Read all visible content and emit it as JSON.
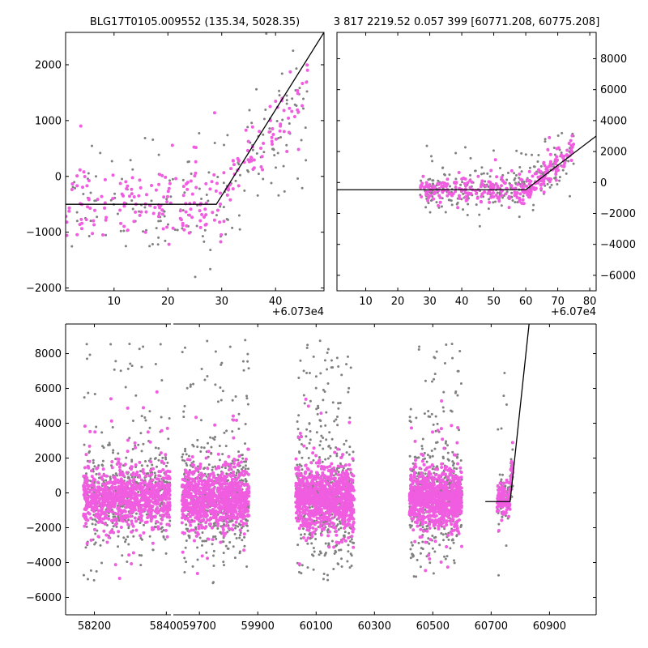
{
  "colors": {
    "grey": "#808080",
    "magenta": "#f05de0",
    "fit": "#000000"
  },
  "chart_data": [
    {
      "id": "top-left",
      "type": "scatter",
      "title": "BLG17T0105.009552 (135.34, 5028.35)",
      "x_offset_label": "+6.073e4",
      "xlim": [
        1,
        49
      ],
      "ylim": [
        -2050,
        2580
      ],
      "xticks": [
        10,
        20,
        30,
        40
      ],
      "yticks": [
        -2000,
        -1000,
        0,
        1000,
        2000
      ],
      "ytick_labels": [
        "−2000",
        "−1000",
        "0",
        "1000",
        "2000"
      ],
      "yaxis_side": "left",
      "fit_line": [
        [
          1,
          -500
        ],
        [
          29,
          -500
        ],
        [
          49,
          2580
        ]
      ],
      "scatter": {
        "seed": 11,
        "x_range": [
          1,
          46
        ],
        "grey": {
          "n": 190,
          "flat": [
            -500,
            500
          ],
          "break": 29,
          "slope": 110,
          "noise": 520
        },
        "magenta": {
          "n": 230,
          "flat": [
            -500,
            350
          ],
          "break": 29,
          "slope": 125,
          "noise": 300
        }
      }
    },
    {
      "id": "top-right",
      "type": "scatter",
      "title": "3 817 2219.52 0.057 399 [60771.208, 60775.208]",
      "x_offset_label": "+6.07e4",
      "xlim": [
        1,
        82
      ],
      "ylim": [
        -7000,
        9700
      ],
      "xticks": [
        10,
        20,
        30,
        40,
        50,
        60,
        70,
        80
      ],
      "yticks": [
        -6000,
        -4000,
        -2000,
        0,
        2000,
        4000,
        6000,
        8000
      ],
      "ytick_labels": [
        "−6000",
        "−4000",
        "−2000",
        "0",
        "2000",
        "4000",
        "6000",
        "8000"
      ],
      "yaxis_side": "right",
      "fit_line": [
        [
          1,
          -470
        ],
        [
          60,
          -470
        ],
        [
          82,
          3000
        ]
      ],
      "scatter": {
        "seed": 23,
        "x_range": [
          27,
          75
        ],
        "grey": {
          "n": 260,
          "flat": [
            -470,
            650
          ],
          "break": 60,
          "slope": 160,
          "noise": 900
        },
        "magenta": {
          "n": 300,
          "flat": [
            -470,
            450
          ],
          "break": 60,
          "slope": 175,
          "noise": 400
        }
      }
    },
    {
      "id": "bottom",
      "type": "scatter",
      "title": "",
      "xlim": [
        58120,
        61060
      ],
      "ylim": [
        -7000,
        9700
      ],
      "xticks": [
        58200,
        58400,
        59700,
        59900,
        60100,
        60300,
        60500,
        60700,
        60900
      ],
      "xtick_labels": [
        "58200",
        "58400",
        "59700",
        "59900",
        "60100",
        "60300",
        "60500",
        "60700",
        "60900"
      ],
      "yticks": [
        -6000,
        -4000,
        -2000,
        0,
        2000,
        4000,
        6000,
        8000
      ],
      "ytick_labels": [
        "−6000",
        "−4000",
        "−2000",
        "0",
        "2000",
        "4000",
        "6000",
        "8000"
      ],
      "yaxis_side": "left",
      "axis_break_between": [
        58400,
        59700
      ],
      "fit_line": [
        [
          60680,
          -500
        ],
        [
          60765,
          -500
        ],
        [
          60830,
          9700
        ]
      ],
      "seasons": [
        {
          "x": [
            58170,
            58410
          ],
          "n_grey": 520,
          "n_mag": 900,
          "spread": 1600
        },
        {
          "x": [
            59640,
            59870
          ],
          "n_grey": 520,
          "n_mag": 900,
          "spread": 1800
        },
        {
          "x": [
            60030,
            60230
          ],
          "n_grey": 560,
          "n_mag": 950,
          "spread": 1800
        },
        {
          "x": [
            60420,
            60600
          ],
          "n_grey": 480,
          "n_mag": 850,
          "spread": 1700
        },
        {
          "x": [
            60720,
            60775
          ],
          "n_grey": 90,
          "n_mag": 140,
          "spread": 900
        }
      ]
    }
  ]
}
